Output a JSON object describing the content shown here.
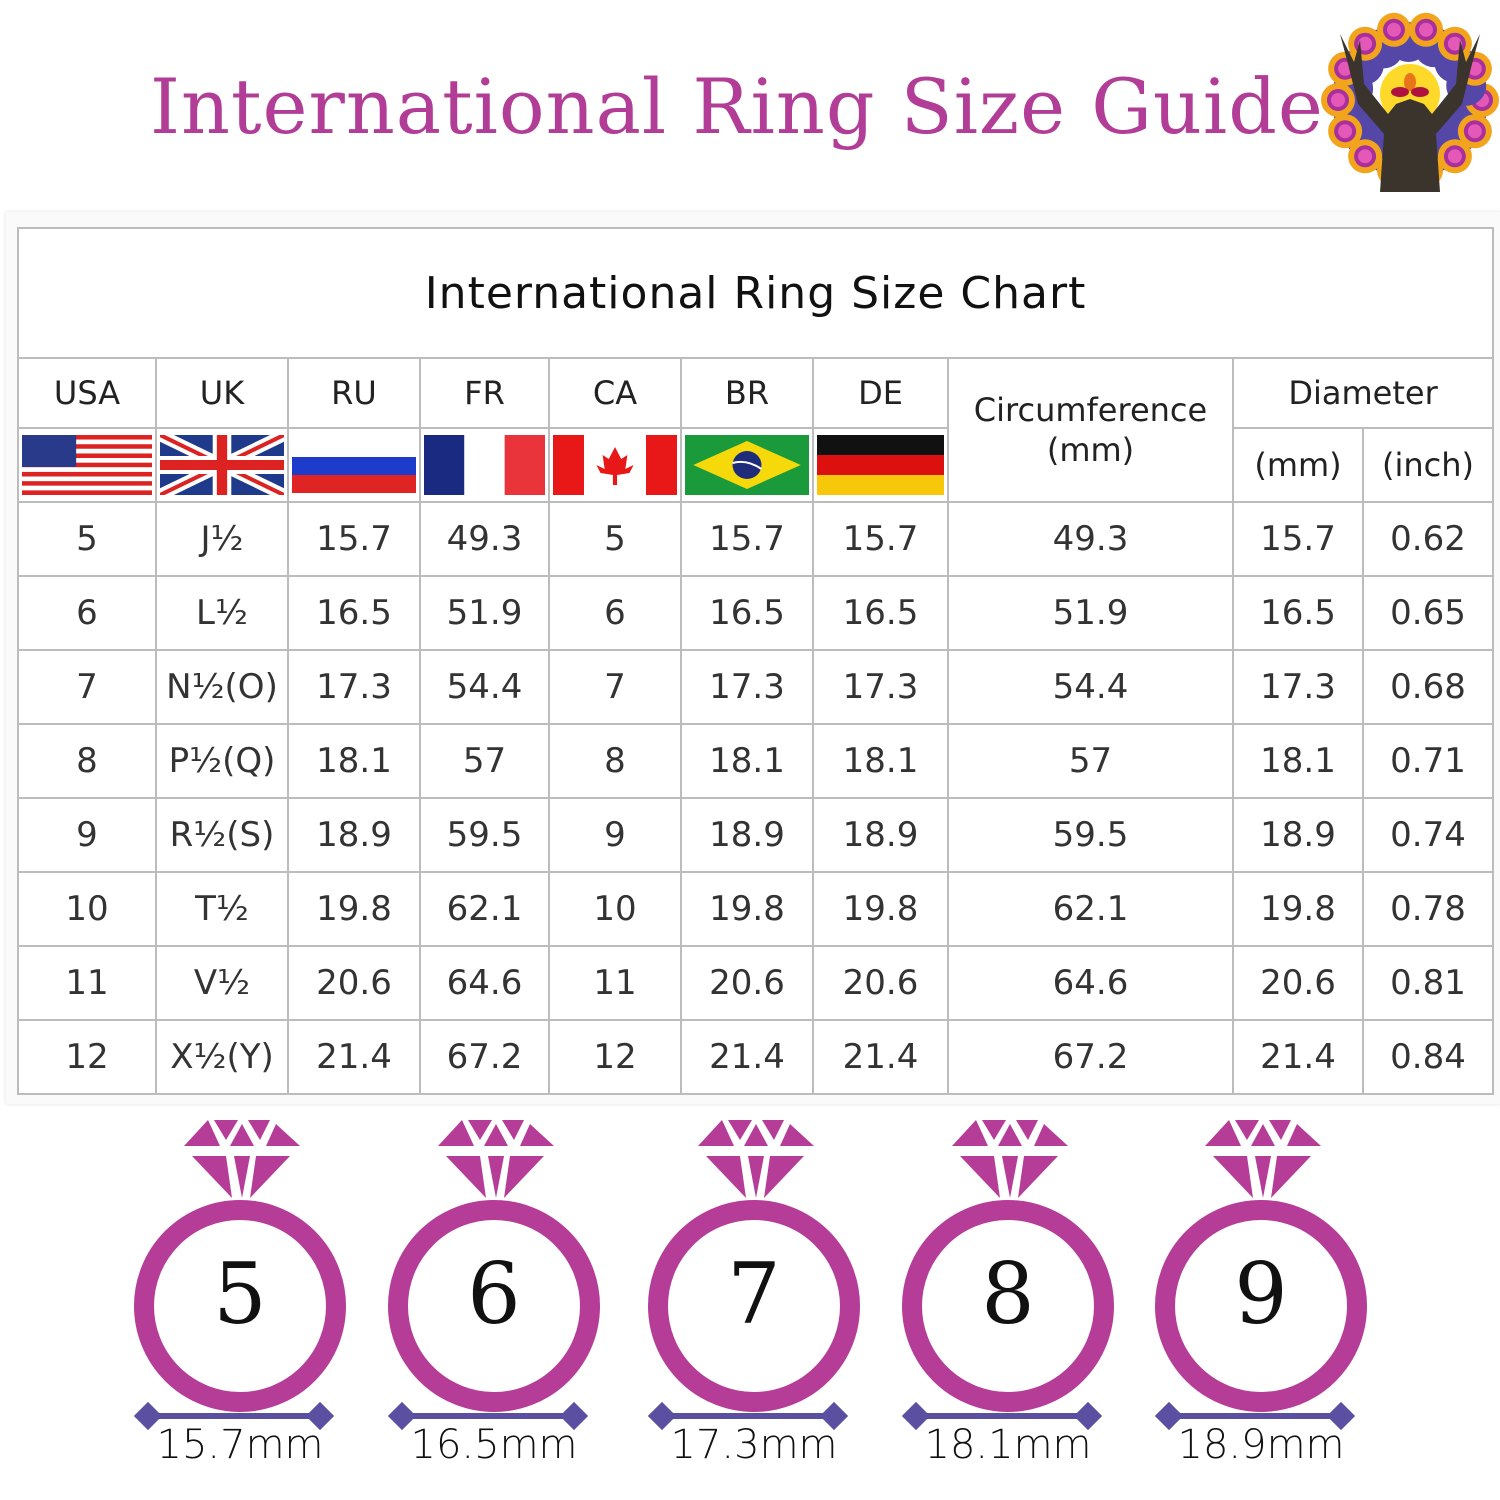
{
  "header": {
    "title": "International Ring Size Guide",
    "logo": "deer-mandala-logo"
  },
  "table": {
    "title": "International Ring Size Chart",
    "columns": [
      "USA",
      "UK",
      "RU",
      "FR",
      "CA",
      "BR",
      "DE"
    ],
    "circumference_label": "Circumference\n(mm)",
    "diameter_label": "Diameter",
    "diameter_sub": [
      "(mm)",
      "(inch)"
    ],
    "flags": [
      "usa-flag",
      "uk-flag",
      "russia-flag",
      "france-flag",
      "canada-flag",
      "brazil-flag",
      "germany-flag"
    ],
    "rows": [
      [
        "5",
        "J½",
        "15.7",
        "49.3",
        "5",
        "15.7",
        "15.7",
        "49.3",
        "15.7",
        "0.62"
      ],
      [
        "6",
        "L½",
        "16.5",
        "51.9",
        "6",
        "16.5",
        "16.5",
        "51.9",
        "16.5",
        "0.65"
      ],
      [
        "7",
        "N½(O)",
        "17.3",
        "54.4",
        "7",
        "17.3",
        "17.3",
        "54.4",
        "17.3",
        "0.68"
      ],
      [
        "8",
        "P½(Q)",
        "18.1",
        "57",
        "8",
        "18.1",
        "18.1",
        "57",
        "18.1",
        "0.71"
      ],
      [
        "9",
        "R½(S)",
        "18.9",
        "59.5",
        "9",
        "18.9",
        "18.9",
        "59.5",
        "18.9",
        "0.74"
      ],
      [
        "10",
        "T½",
        "19.8",
        "62.1",
        "10",
        "19.8",
        "19.8",
        "62.1",
        "19.8",
        "0.78"
      ],
      [
        "11",
        "V½",
        "20.6",
        "64.6",
        "11",
        "20.6",
        "20.6",
        "64.6",
        "20.6",
        "0.81"
      ],
      [
        "12",
        "X½(Y)",
        "21.4",
        "67.2",
        "12",
        "21.4",
        "21.4",
        "67.2",
        "21.4",
        "0.84"
      ]
    ]
  },
  "rings": [
    {
      "size": "5",
      "diameter": "15.7mm"
    },
    {
      "size": "6",
      "diameter": "16.5mm"
    },
    {
      "size": "7",
      "diameter": "17.3mm"
    },
    {
      "size": "8",
      "diameter": "18.1mm"
    },
    {
      "size": "9",
      "diameter": "18.9mm"
    }
  ],
  "colors": {
    "accent": "#b53d97",
    "measure": "#5a4fa0",
    "border": "#bcbcbc"
  }
}
